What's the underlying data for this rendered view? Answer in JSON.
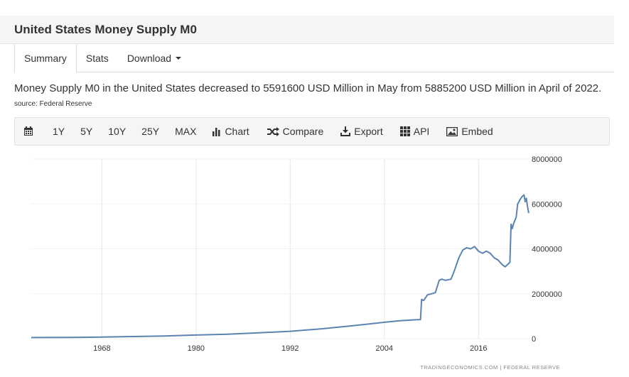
{
  "page": {
    "title": "United States Money Supply M0"
  },
  "tabs": [
    {
      "label": "Summary",
      "active": true
    },
    {
      "label": "Stats",
      "active": false
    },
    {
      "label": "Download",
      "active": false
    }
  ],
  "description": {
    "text": "Money Supply M0 in the United States decreased to 5591600 USD Million in May from 5885200 USD Million in April of 2022.",
    "source": "source: Federal Reserve"
  },
  "toolbar": {
    "ranges": [
      "1Y",
      "5Y",
      "10Y",
      "25Y",
      "MAX"
    ],
    "chart_label": "Chart",
    "compare_label": "Compare",
    "export_label": "Export",
    "api_label": "API",
    "embed_label": "Embed"
  },
  "footer": {
    "credit": "TRADINGECONOMICS.COM  |  FEDERAL RESERVE"
  },
  "colors": {
    "line": "#5b84b1",
    "grid": "#e6e6e6"
  },
  "chart_data": {
    "type": "line",
    "title": "United States Money Supply M0",
    "xlabel": "",
    "ylabel": "",
    "xlim": [
      1959,
      2022.5
    ],
    "ylim": [
      0,
      8000000
    ],
    "xticks": [
      1968,
      1980,
      1992,
      2004,
      2016
    ],
    "yticks": [
      0,
      2000000,
      4000000,
      6000000,
      8000000
    ],
    "ytick_labels": [
      "0",
      "2000000",
      "4000000",
      "6000000",
      "8000000"
    ],
    "grid": true,
    "series": [
      {
        "name": "Money Supply M0",
        "x": [
          1959,
          1964,
          1968,
          1972,
          1976,
          1980,
          1984,
          1988,
          1992,
          1996,
          2000,
          2002,
          2004,
          2006,
          2008,
          2008.6,
          2008.75,
          2009,
          2009.5,
          2010,
          2010.5,
          2011,
          2011.3,
          2011.8,
          2012.5,
          2013,
          2013.5,
          2014,
          2014.5,
          2015,
          2015.5,
          2016,
          2016.5,
          2017,
          2017.5,
          2018,
          2018.5,
          2019,
          2019.4,
          2019.7,
          2020,
          2020.15,
          2020.3,
          2020.5,
          2020.8,
          2021,
          2021.3,
          2021.6,
          2021.8,
          2021.95,
          2022.1,
          2022.25,
          2022.4
        ],
        "values": [
          50000,
          55000,
          70000,
          95000,
          120000,
          160000,
          200000,
          260000,
          330000,
          440000,
          580000,
          650000,
          730000,
          800000,
          840000,
          850000,
          1750000,
          1700000,
          1950000,
          2000000,
          2050000,
          2600000,
          2650000,
          2600000,
          2650000,
          3100000,
          3600000,
          3950000,
          4050000,
          4000000,
          4100000,
          3900000,
          3800000,
          3900000,
          3800000,
          3600000,
          3500000,
          3300000,
          3200000,
          3300000,
          3400000,
          5100000,
          4900000,
          5150000,
          5400000,
          6000000,
          6200000,
          6350000,
          6400000,
          6100000,
          6250000,
          5885200,
          5591600
        ]
      }
    ]
  }
}
